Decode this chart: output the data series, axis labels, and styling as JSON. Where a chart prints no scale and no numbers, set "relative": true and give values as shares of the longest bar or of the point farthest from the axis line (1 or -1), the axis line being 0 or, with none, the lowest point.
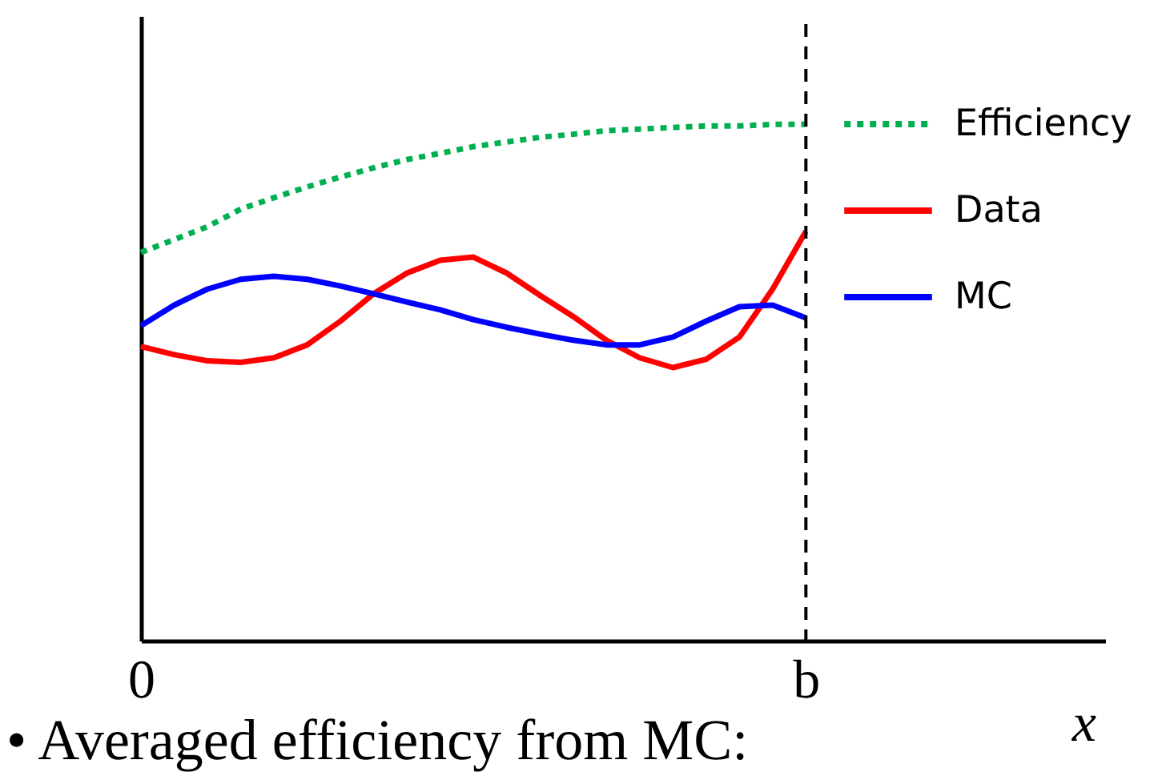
{
  "chart_data": {
    "type": "line",
    "relative": true,
    "xlabel": "x",
    "categories": [
      "0",
      null,
      null,
      null,
      null,
      null,
      null,
      null,
      null,
      null,
      null,
      null,
      null,
      null,
      null,
      null,
      null,
      null,
      null,
      null,
      "b",
      null,
      null,
      null,
      null,
      null,
      null,
      null,
      null,
      null
    ],
    "tick_labels": "x",
    "grid": false,
    "legend": "top right",
    "series": [
      {
        "name": "Efficiency",
        "color": "#00b050",
        "line_style": "dotted",
        "values": [
          0.752,
          0.777,
          0.802,
          0.836,
          0.858,
          0.879,
          0.898,
          0.916,
          0.932,
          0.944,
          0.957,
          0.966,
          0.975,
          0.981,
          0.988,
          0.991,
          0.994,
          0.997,
          0.997,
          1,
          1,
          null,
          null,
          null,
          null,
          null,
          null,
          null,
          null,
          null
        ]
      },
      {
        "name": "Data",
        "color": "#ff0000",
        "line_style": "solid",
        "values": [
          0.57,
          0.554,
          0.542,
          0.539,
          0.548,
          0.573,
          0.619,
          0.672,
          0.712,
          0.737,
          0.743,
          0.712,
          0.669,
          0.628,
          0.582,
          0.548,
          0.529,
          0.545,
          0.588,
          0.681,
          0.793,
          null,
          null,
          null,
          null,
          null,
          null,
          null,
          null,
          null
        ]
      },
      {
        "name": "MC",
        "color": "#0000ff",
        "line_style": "solid",
        "values": [
          0.61,
          0.65,
          0.681,
          0.7,
          0.706,
          0.7,
          0.687,
          0.672,
          0.656,
          0.641,
          0.622,
          0.607,
          0.594,
          0.582,
          0.573,
          0.573,
          0.588,
          0.619,
          0.647,
          0.65,
          0.625,
          null,
          null,
          null,
          null,
          null,
          null,
          null,
          null,
          null
        ]
      }
    ],
    "ref_lines": [
      {
        "axis": "x",
        "value": "b",
        "color": "#000000",
        "line_style": "dashed"
      }
    ],
    "annotations": [
      "• Averaged efficiency from MC:"
    ]
  }
}
